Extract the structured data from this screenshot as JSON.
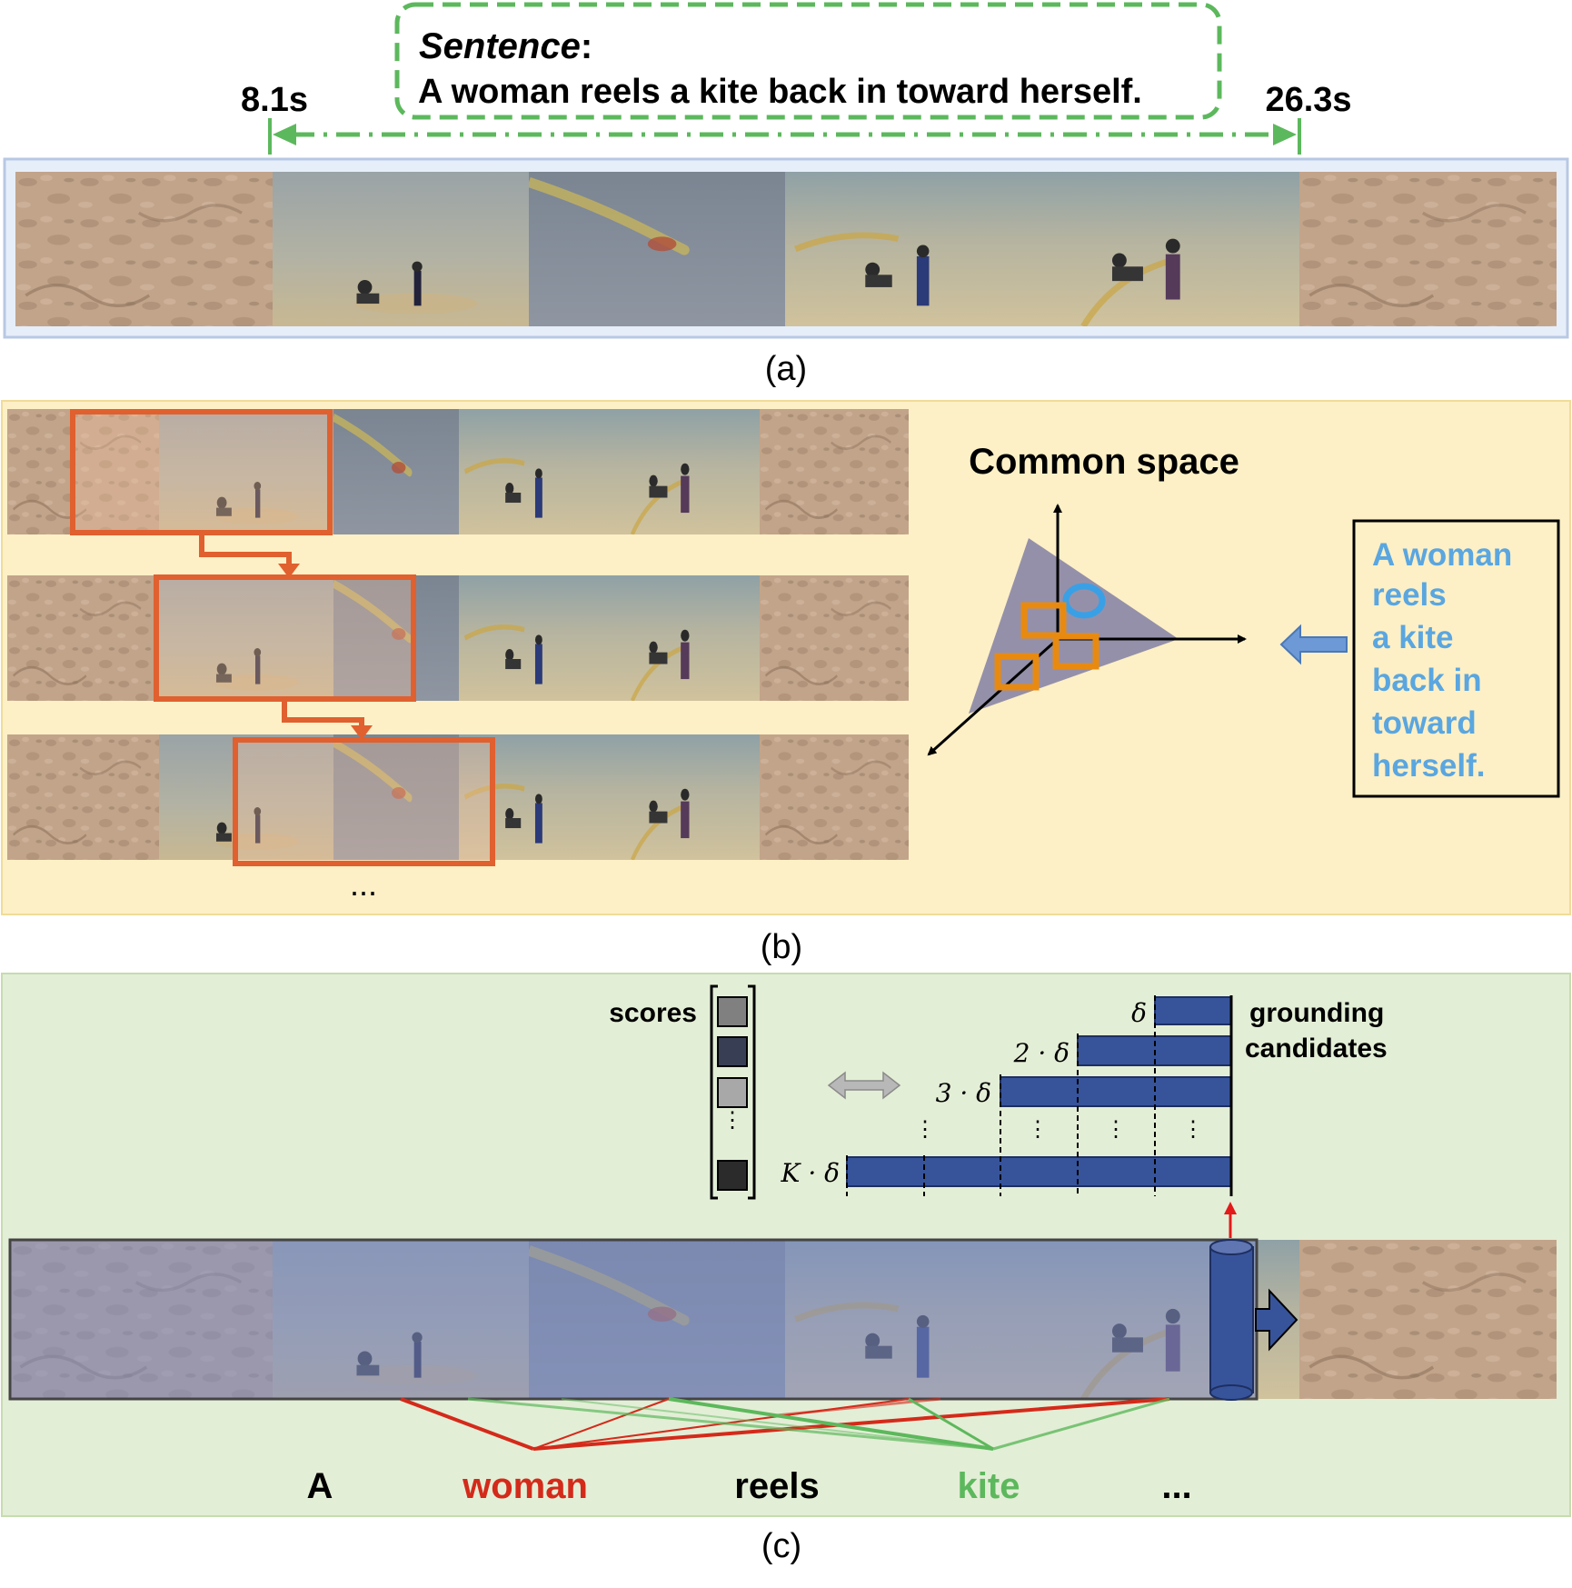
{
  "panel_a": {
    "sentence_label": "Sentence",
    "sentence_colon": ":",
    "sentence_text": "A woman reels a kite back in toward herself.",
    "start_time": "8.1s",
    "end_time": "26.3s",
    "caption": "(a)"
  },
  "panel_b": {
    "common_space_title": "Common space",
    "query_lines": [
      "A woman",
      "reels",
      "a kite",
      "back in",
      "toward",
      "herself."
    ],
    "ellipsis": "...",
    "caption": "(b)"
  },
  "panel_c": {
    "scores_label": "scores",
    "grounding_label_line1": "grounding",
    "grounding_label_line2": "candidates",
    "delta_labels": [
      "δ",
      "2 · δ",
      "3 · δ",
      "K · δ"
    ],
    "words": [
      {
        "text": "A",
        "color": "#000000"
      },
      {
        "text": "woman",
        "color": "#d42a1a"
      },
      {
        "text": "reels",
        "color": "#000000"
      },
      {
        "text": "kite",
        "color": "#5cb85c"
      },
      {
        "text": "...",
        "color": "#000000"
      }
    ],
    "caption": "(c)"
  },
  "colors": {
    "panel_a_bg": "#e6eefa",
    "panel_b_bg": "#fdf0c6",
    "panel_c_bg": "#e3eed6",
    "dashed_green": "#5cb85c",
    "sliding_window": "#e06030",
    "candidate_blue": "#37549b",
    "query_blue": "#5aa6e0",
    "proposal_orange": "#e88a10",
    "word_red": "#d42a1a",
    "word_green": "#5cb85c"
  }
}
